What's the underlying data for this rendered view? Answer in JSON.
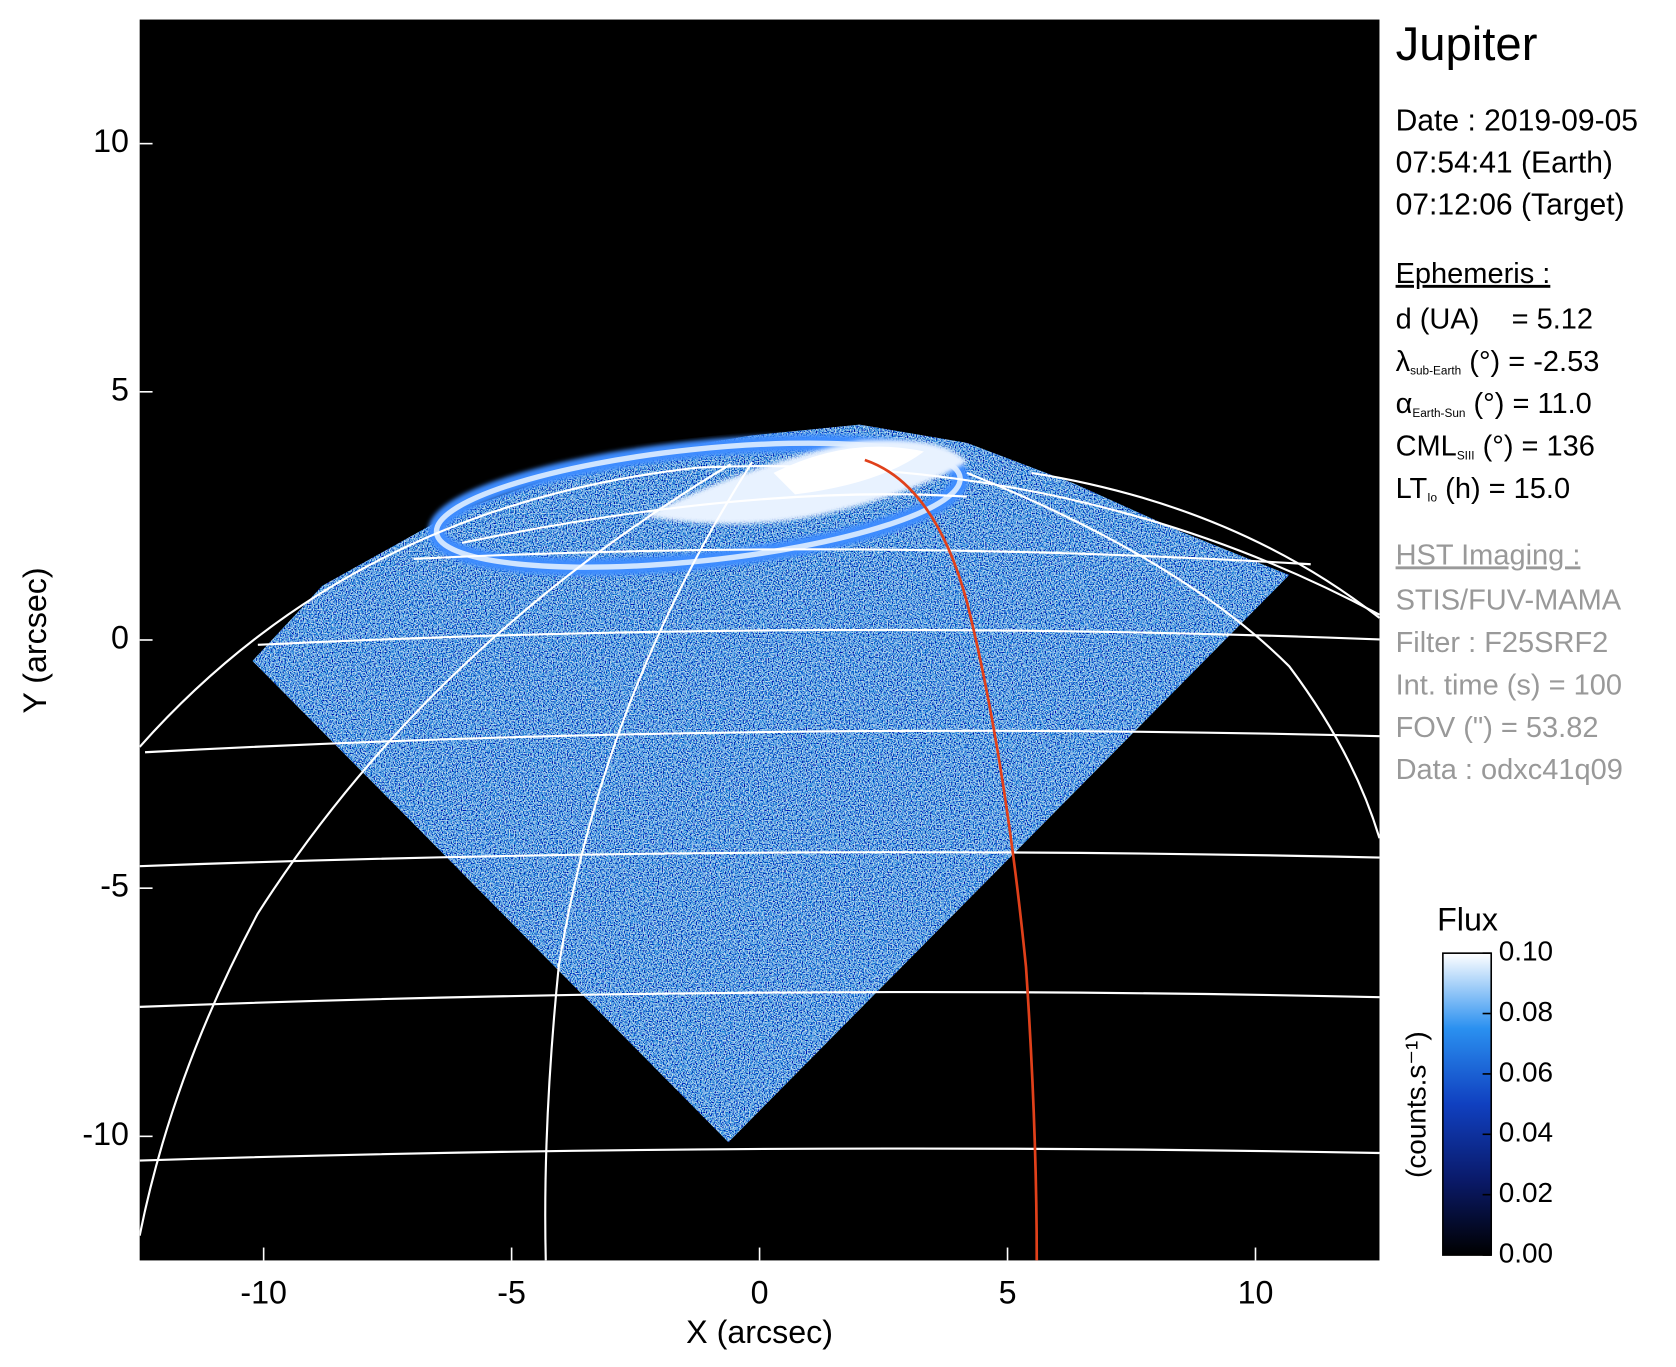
{
  "chart_data": {
    "type": "image",
    "title": "Jupiter",
    "xlabel": "X (arcsec)",
    "ylabel": "Y (arcsec)",
    "xlim": [
      -12.5,
      12.5
    ],
    "ylim": [
      -12.5,
      12.5
    ],
    "xticks": [
      -10,
      -5,
      0,
      5,
      10
    ],
    "yticks": [
      -10,
      -5,
      0,
      5,
      10
    ],
    "colorbar": {
      "title": "Flux",
      "label": "(counts.s⁻¹)",
      "clim": [
        0,
        0.1
      ],
      "cticks": [
        {
          "value": 0,
          "label": "0.00"
        },
        {
          "value": 0.02,
          "label": "0.02"
        },
        {
          "value": 0.04,
          "label": "0.04"
        },
        {
          "value": 0.06,
          "label": "0.06"
        },
        {
          "value": 0.08,
          "label": "0.08"
        },
        {
          "value": 0.1,
          "label": "0.10"
        }
      ]
    },
    "info": {
      "date": "Date : 2019-09-05",
      "earth_time": "07:54:41 (Earth)",
      "target_time": "07:12:06 (Target)",
      "ephemeris_title": "Ephemeris :",
      "ephemeris": [
        {
          "text": "d (UA)    = 5.12"
        },
        {
          "symbol": "λ",
          "sub": "sub-Earth",
          "text": " (°) = -2.53"
        },
        {
          "symbol": "α",
          "sub": "Earth-Sun",
          "text": " (°) = 11.0"
        },
        {
          "symbol": "CML",
          "sub": "SIII",
          "text": " (°) = 136"
        },
        {
          "symbol": "LT",
          "sub": "Io",
          "text": " (h) = 15.0"
        }
      ],
      "imaging_title": "HST Imaging :",
      "imaging": [
        "STIS/FUV-MAMA",
        "Filter : F25SRF2",
        "Int. time (s) = 100",
        "FOV (\") = 53.82",
        "Data : odxc41q09"
      ]
    }
  }
}
